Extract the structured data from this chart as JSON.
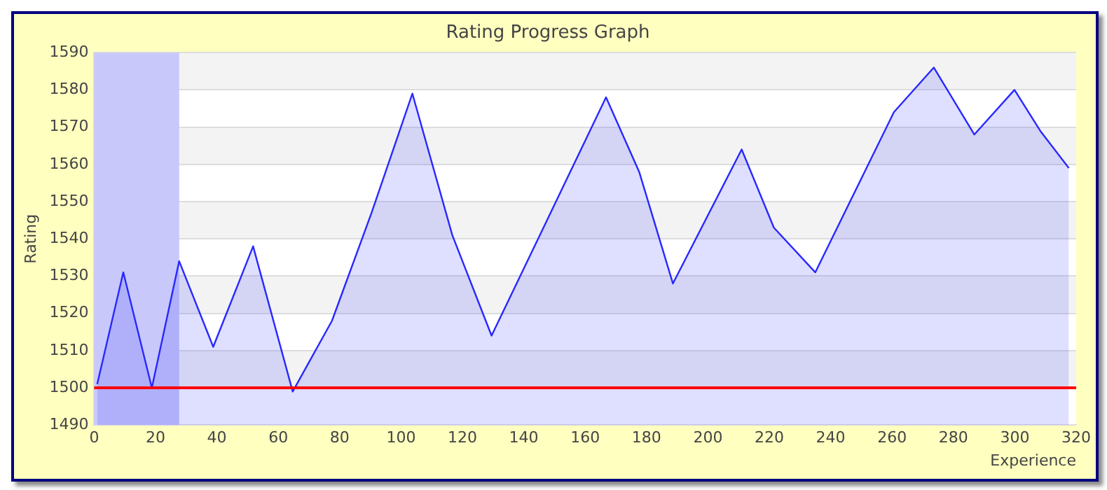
{
  "chart_data": {
    "type": "area",
    "title": "Rating Progress Graph",
    "xlabel": "Experience",
    "ylabel": "Rating",
    "series": [
      {
        "color": "#2828ff",
        "x": [
          1,
          9.5,
          18.8,
          27.7,
          38.8,
          51.8,
          64.7,
          77.5,
          90.4,
          103.7,
          116.7,
          129.5,
          166.8,
          177.6,
          188.6,
          211,
          221.5,
          235,
          260.6,
          273.6,
          286.8,
          299.9,
          308.3,
          317.6
        ],
        "values": [
          1501,
          1531,
          1500,
          1534,
          1511,
          1538,
          1499,
          1518,
          1547,
          1579,
          1541,
          1514,
          1578,
          1558,
          1528,
          1564,
          1543,
          1531,
          1574,
          1586,
          1568,
          1580,
          1569,
          1559
        ]
      }
    ],
    "xlim": [
      0,
      320
    ],
    "xticks": [
      0,
      20,
      40,
      60,
      80,
      100,
      120,
      140,
      160,
      180,
      200,
      220,
      240,
      260,
      280,
      300,
      320
    ],
    "ylim": [
      1490,
      1590
    ],
    "yticks": [
      1490,
      1500,
      1510,
      1520,
      1530,
      1540,
      1550,
      1560,
      1570,
      1580,
      1590
    ],
    "grid": "y",
    "legend": false,
    "marker": "none",
    "line_style": "solid",
    "ref_lines": [
      {
        "axis": "y",
        "value": 1500,
        "color": "#ff0000"
      }
    ],
    "bands": [
      {
        "axis": "x",
        "from": 0,
        "to": 27.7,
        "color": "#c8c8fa"
      }
    ]
  }
}
